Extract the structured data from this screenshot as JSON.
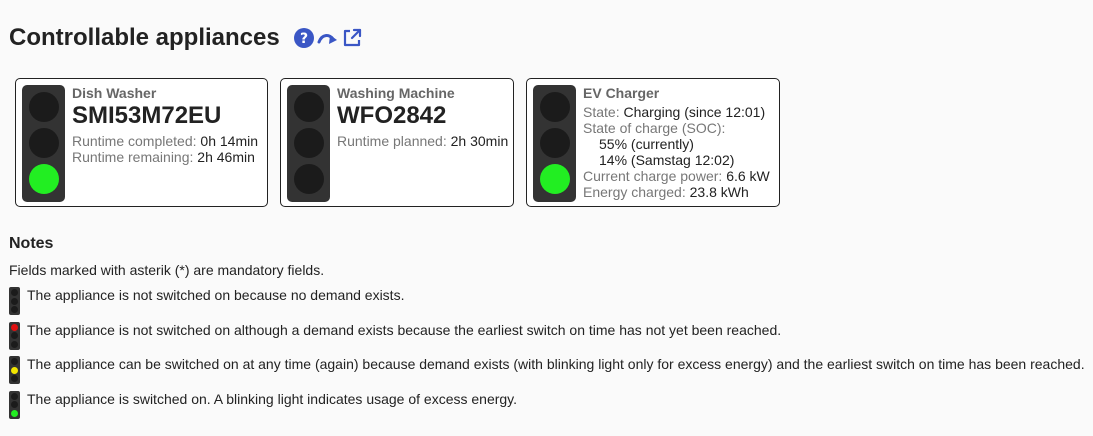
{
  "header": {
    "title": "Controllable appliances",
    "icons": [
      "help-icon",
      "forward-arrow-icon",
      "external-link-icon"
    ],
    "accent": "#3a56c5"
  },
  "appliances": [
    {
      "type": "Dish Washer",
      "model": "SMI53M72EU",
      "light": "green",
      "rows": [
        {
          "label": "Runtime completed:",
          "value": "0h 14min"
        },
        {
          "label": "Runtime remaining:",
          "value": "2h 46min"
        }
      ]
    },
    {
      "type": "Washing Machine",
      "model": "WFO2842",
      "light": "off",
      "rows": [
        {
          "label": "Runtime planned:",
          "value": "2h 30min"
        }
      ]
    },
    {
      "type": "EV Charger",
      "light": "green",
      "state_label": "State:",
      "state_value": "Charging (since 12:01)",
      "soc_label": "State of charge (SOC):",
      "soc_current": "55% (currently)",
      "soc_target": "14% (Samstag 12:02)",
      "power_label": "Current charge power:",
      "power_value": "6.6 kW",
      "energy_label": "Energy charged:",
      "energy_value": "23.8 kWh"
    }
  ],
  "notes": {
    "title": "Notes",
    "mandatory": "Fields marked with asterik (*) are mandatory fields.",
    "legend": [
      {
        "light": "off",
        "text": "The appliance is not switched on because no demand exists."
      },
      {
        "light": "red",
        "text": "The appliance is not switched on although a demand exists because the earliest switch on time has not yet been reached."
      },
      {
        "light": "yellow",
        "text": "The appliance can be switched on at any time (again) because demand exists (with blinking light only for excess energy) and the earliest switch on time has been reached."
      },
      {
        "light": "green",
        "text": "The appliance is switched on. A blinking light indicates usage of excess energy."
      }
    ]
  },
  "colors": {
    "lamp_green": "#22ee22",
    "lamp_red": "#e01010",
    "lamp_yellow": "#f2e600",
    "lamp_off": "#1b1b1b",
    "housing": "#333333"
  }
}
